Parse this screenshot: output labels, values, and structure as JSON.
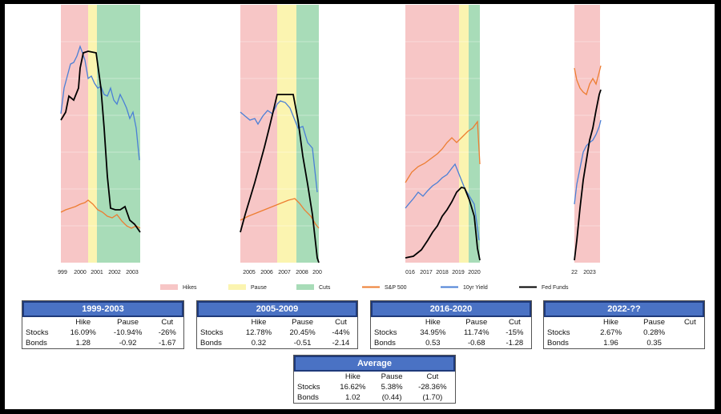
{
  "chart_data": {
    "type": "line",
    "legend": [
      {
        "label": "Hikes",
        "color": "#f7c6c6"
      },
      {
        "label": "Pause",
        "color": "#fbf4b0"
      },
      {
        "label": "Cuts",
        "color": "#a8dcb8"
      },
      {
        "label": "S&P 500",
        "color": "#ed7d31"
      },
      {
        "label": "10yr Yield",
        "color": "#4a7fd6"
      },
      {
        "label": "Fed Funds",
        "color": "#000000"
      }
    ],
    "panels": [
      {
        "ticks": [
          "999",
          "2000",
          "2001",
          "2002",
          "2003"
        ]
      },
      {
        "ticks": [
          "2005",
          "2006",
          "2007",
          "2008",
          "200"
        ]
      },
      {
        "ticks": [
          "016",
          "2017",
          "2018",
          "2019",
          "2020"
        ]
      },
      {
        "ticks": [
          "22",
          "2023"
        ]
      }
    ]
  },
  "tables": [
    {
      "title": "1999-2003",
      "cols": [
        "Hike",
        "Pause",
        "Cut"
      ],
      "rows": [
        {
          "label": "Stocks",
          "v": [
            "16.09%",
            "-10.94%",
            "-26%"
          ]
        },
        {
          "label": "Bonds",
          "v": [
            "1.28",
            "-0.92",
            "-1.67"
          ]
        }
      ]
    },
    {
      "title": "2005-2009",
      "cols": [
        "Hike",
        "Pause",
        "Cut"
      ],
      "rows": [
        {
          "label": "Stocks",
          "v": [
            "12.78%",
            "20.45%",
            "-44%"
          ]
        },
        {
          "label": "Bonds",
          "v": [
            "0.32",
            "-0.51",
            "-2.14"
          ]
        }
      ]
    },
    {
      "title": "2016-2020",
      "cols": [
        "Hike",
        "Pause",
        "Cut"
      ],
      "rows": [
        {
          "label": "Stocks",
          "v": [
            "34.95%",
            "11.74%",
            "-15%"
          ]
        },
        {
          "label": "Bonds",
          "v": [
            "0.53",
            "-0.68",
            "-1.28"
          ]
        }
      ]
    },
    {
      "title": "2022-??",
      "cols": [
        "Hike",
        "Pause",
        "Cut"
      ],
      "rows": [
        {
          "label": "Stocks",
          "v": [
            "2.67%",
            "0.28%",
            ""
          ]
        },
        {
          "label": "Bonds",
          "v": [
            "1.96",
            "0.35",
            ""
          ]
        }
      ]
    },
    {
      "title": "Average",
      "cols": [
        "Hike",
        "Pause",
        "Cut"
      ],
      "rows": [
        {
          "label": "Stocks",
          "v": [
            "16.62%",
            "5.38%",
            "-28.36%"
          ]
        },
        {
          "label": "Bonds",
          "v": [
            "1.02",
            "(0.44)",
            "(1.70)"
          ]
        }
      ]
    }
  ]
}
